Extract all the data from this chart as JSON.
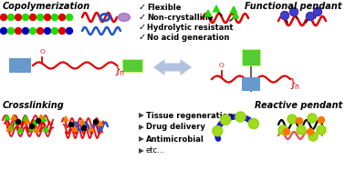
{
  "bg_color": "#ffffff",
  "title_copolymerization": "Copolymerization",
  "title_functional": "Functional pendant",
  "title_crosslinking": "Crosslinking",
  "title_reactive": "Reactive pendant",
  "check_items": [
    "Flexible",
    "Non-crystalline",
    "Hydrolytic resistant",
    "No acid generation"
  ],
  "arrow_items": [
    "Tissue regeneration",
    "Drug delivery",
    "Antimicrobial",
    "etc..."
  ],
  "red": "#e00000",
  "blue": "#2255cc",
  "dark_blue": "#0000bb",
  "green": "#00aa00",
  "lgreen": "#55cc33",
  "bright_green": "#22dd00",
  "orange": "#ff7700",
  "yellow": "#ffee00",
  "purple": "#9966bb",
  "slate_blue": "#6699cc",
  "light_blue_arrow": "#aabbdd"
}
